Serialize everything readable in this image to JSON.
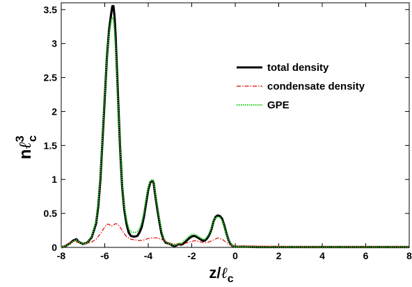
{
  "chart_data": {
    "type": "line",
    "title": "",
    "xlabel": {
      "main": "z/",
      "ell": "ℓ",
      "sub": "c"
    },
    "ylabel": {
      "main": "n",
      "ell": "ℓ",
      "sup": "3",
      "sub": "c"
    },
    "xlim": [
      -8,
      8
    ],
    "ylim": [
      0,
      3.6
    ],
    "xticks": [
      -8,
      -6,
      -4,
      -2,
      0,
      2,
      4,
      6,
      8
    ],
    "xtick_labels": [
      "-8",
      "-6",
      "-4",
      "-2",
      "0",
      "2",
      "4",
      "6",
      "8"
    ],
    "yticks": [
      0,
      0.5,
      1,
      1.5,
      2,
      2.5,
      3,
      3.5
    ],
    "ytick_labels": [
      "0",
      "0.5",
      "1",
      "1.5",
      "2",
      "2.5",
      "3",
      "3.5"
    ],
    "grid": false,
    "legend_position": "top-right",
    "series": [
      {
        "name": "total density",
        "color": "#000000",
        "style": "solid",
        "x": [
          -8.0,
          -7.8,
          -7.6,
          -7.45,
          -7.3,
          -7.2,
          -7.0,
          -6.8,
          -6.6,
          -6.4,
          -6.3,
          -6.2,
          -6.1,
          -6.0,
          -5.9,
          -5.8,
          -5.7,
          -5.65,
          -5.6,
          -5.55,
          -5.5,
          -5.4,
          -5.3,
          -5.2,
          -5.1,
          -5.0,
          -4.9,
          -4.8,
          -4.7,
          -4.6,
          -4.5,
          -4.4,
          -4.3,
          -4.2,
          -4.1,
          -4.0,
          -3.9,
          -3.8,
          -3.75,
          -3.7,
          -3.6,
          -3.5,
          -3.4,
          -3.3,
          -3.2,
          -3.1,
          -3.0,
          -2.9,
          -2.8,
          -2.7,
          -2.6,
          -2.5,
          -2.4,
          -2.3,
          -2.2,
          -2.1,
          -2.0,
          -1.9,
          -1.8,
          -1.7,
          -1.6,
          -1.5,
          -1.4,
          -1.3,
          -1.2,
          -1.1,
          -1.0,
          -0.9,
          -0.8,
          -0.7,
          -0.6,
          -0.5,
          -0.4,
          -0.3,
          -0.2,
          -0.1,
          0.0,
          0.5,
          1.0,
          2.0,
          3.0,
          4.0,
          5.0,
          6.0,
          7.0,
          8.0
        ],
        "y": [
          0.0,
          0.02,
          0.06,
          0.1,
          0.12,
          0.08,
          0.05,
          0.07,
          0.15,
          0.35,
          0.6,
          1.0,
          1.6,
          2.2,
          2.8,
          3.2,
          3.45,
          3.55,
          3.55,
          3.4,
          3.1,
          2.3,
          1.5,
          0.9,
          0.55,
          0.35,
          0.22,
          0.17,
          0.16,
          0.16,
          0.17,
          0.22,
          0.3,
          0.45,
          0.65,
          0.85,
          0.96,
          0.98,
          0.95,
          0.82,
          0.6,
          0.4,
          0.22,
          0.12,
          0.07,
          0.06,
          0.05,
          0.03,
          0.02,
          0.03,
          0.05,
          0.04,
          0.05,
          0.08,
          0.11,
          0.14,
          0.16,
          0.17,
          0.16,
          0.14,
          0.12,
          0.1,
          0.1,
          0.13,
          0.18,
          0.26,
          0.38,
          0.45,
          0.47,
          0.46,
          0.42,
          0.32,
          0.2,
          0.1,
          0.04,
          0.015,
          0.01,
          0.01,
          0.005,
          0.005,
          0.005,
          0.005,
          0.005,
          0.005,
          0.005,
          0.005
        ]
      },
      {
        "name": "condensate density",
        "color": "#dd0000",
        "style": "dashdot",
        "x": [
          -8.0,
          -7.8,
          -7.6,
          -7.4,
          -7.2,
          -7.0,
          -6.8,
          -6.6,
          -6.4,
          -6.2,
          -6.0,
          -5.9,
          -5.8,
          -5.7,
          -5.6,
          -5.5,
          -5.4,
          -5.3,
          -5.2,
          -5.1,
          -5.0,
          -4.8,
          -4.6,
          -4.4,
          -4.2,
          -4.0,
          -3.8,
          -3.6,
          -3.4,
          -3.2,
          -3.0,
          -2.8,
          -2.6,
          -2.4,
          -2.2,
          -2.0,
          -1.8,
          -1.6,
          -1.4,
          -1.2,
          -1.0,
          -0.8,
          -0.6,
          -0.4,
          -0.2,
          0.0,
          0.5,
          1.0,
          1.5,
          2.0,
          3.0,
          4.0,
          5.0,
          6.0,
          7.0,
          8.0
        ],
        "y": [
          0.0,
          0.03,
          0.07,
          0.09,
          0.07,
          0.05,
          0.06,
          0.08,
          0.12,
          0.2,
          0.3,
          0.34,
          0.34,
          0.31,
          0.33,
          0.35,
          0.34,
          0.3,
          0.25,
          0.2,
          0.16,
          0.12,
          0.11,
          0.1,
          0.11,
          0.13,
          0.14,
          0.14,
          0.12,
          0.09,
          0.06,
          0.05,
          0.05,
          0.05,
          0.07,
          0.09,
          0.1,
          0.08,
          0.07,
          0.08,
          0.11,
          0.14,
          0.12,
          0.07,
          0.03,
          0.02,
          0.02,
          0.02,
          0.015,
          0.015,
          0.01,
          0.01,
          0.01,
          0.01,
          0.01,
          0.01
        ]
      },
      {
        "name": "GPE",
        "color": "#22cc22",
        "style": "dotted",
        "x": [
          -8.0,
          -7.8,
          -7.6,
          -7.45,
          -7.3,
          -7.2,
          -7.0,
          -6.8,
          -6.6,
          -6.4,
          -6.3,
          -6.2,
          -6.1,
          -6.0,
          -5.9,
          -5.8,
          -5.7,
          -5.65,
          -5.6,
          -5.55,
          -5.5,
          -5.4,
          -5.3,
          -5.2,
          -5.1,
          -5.0,
          -4.9,
          -4.8,
          -4.7,
          -4.6,
          -4.5,
          -4.4,
          -4.3,
          -4.2,
          -4.1,
          -4.0,
          -3.9,
          -3.8,
          -3.75,
          -3.7,
          -3.6,
          -3.5,
          -3.4,
          -3.3,
          -3.2,
          -3.1,
          -3.0,
          -2.9,
          -2.8,
          -2.7,
          -2.6,
          -2.5,
          -2.4,
          -2.3,
          -2.2,
          -2.1,
          -2.0,
          -1.9,
          -1.8,
          -1.7,
          -1.6,
          -1.5,
          -1.4,
          -1.3,
          -1.2,
          -1.1,
          -1.0,
          -0.9,
          -0.8,
          -0.7,
          -0.6,
          -0.5,
          -0.4,
          -0.3,
          -0.2,
          -0.1,
          0.0,
          0.5,
          1.0,
          2.0,
          3.0,
          4.0,
          5.0,
          6.0,
          7.0,
          8.0
        ],
        "y": [
          0.0,
          0.02,
          0.05,
          0.09,
          0.11,
          0.08,
          0.05,
          0.07,
          0.16,
          0.38,
          0.65,
          1.05,
          1.65,
          2.25,
          2.8,
          3.15,
          3.35,
          3.38,
          3.35,
          3.2,
          2.95,
          2.2,
          1.5,
          0.95,
          0.6,
          0.4,
          0.28,
          0.23,
          0.22,
          0.22,
          0.23,
          0.28,
          0.36,
          0.5,
          0.7,
          0.88,
          0.98,
          1.0,
          0.97,
          0.85,
          0.64,
          0.44,
          0.26,
          0.14,
          0.08,
          0.06,
          0.05,
          0.04,
          0.03,
          0.04,
          0.06,
          0.06,
          0.08,
          0.11,
          0.14,
          0.17,
          0.19,
          0.19,
          0.18,
          0.16,
          0.14,
          0.12,
          0.12,
          0.15,
          0.2,
          0.28,
          0.38,
          0.44,
          0.45,
          0.44,
          0.4,
          0.3,
          0.19,
          0.1,
          0.04,
          0.015,
          0.01,
          0.01,
          0.005,
          0.005,
          0.005,
          0.005,
          0.005,
          0.005,
          0.005,
          0.005
        ]
      }
    ]
  }
}
